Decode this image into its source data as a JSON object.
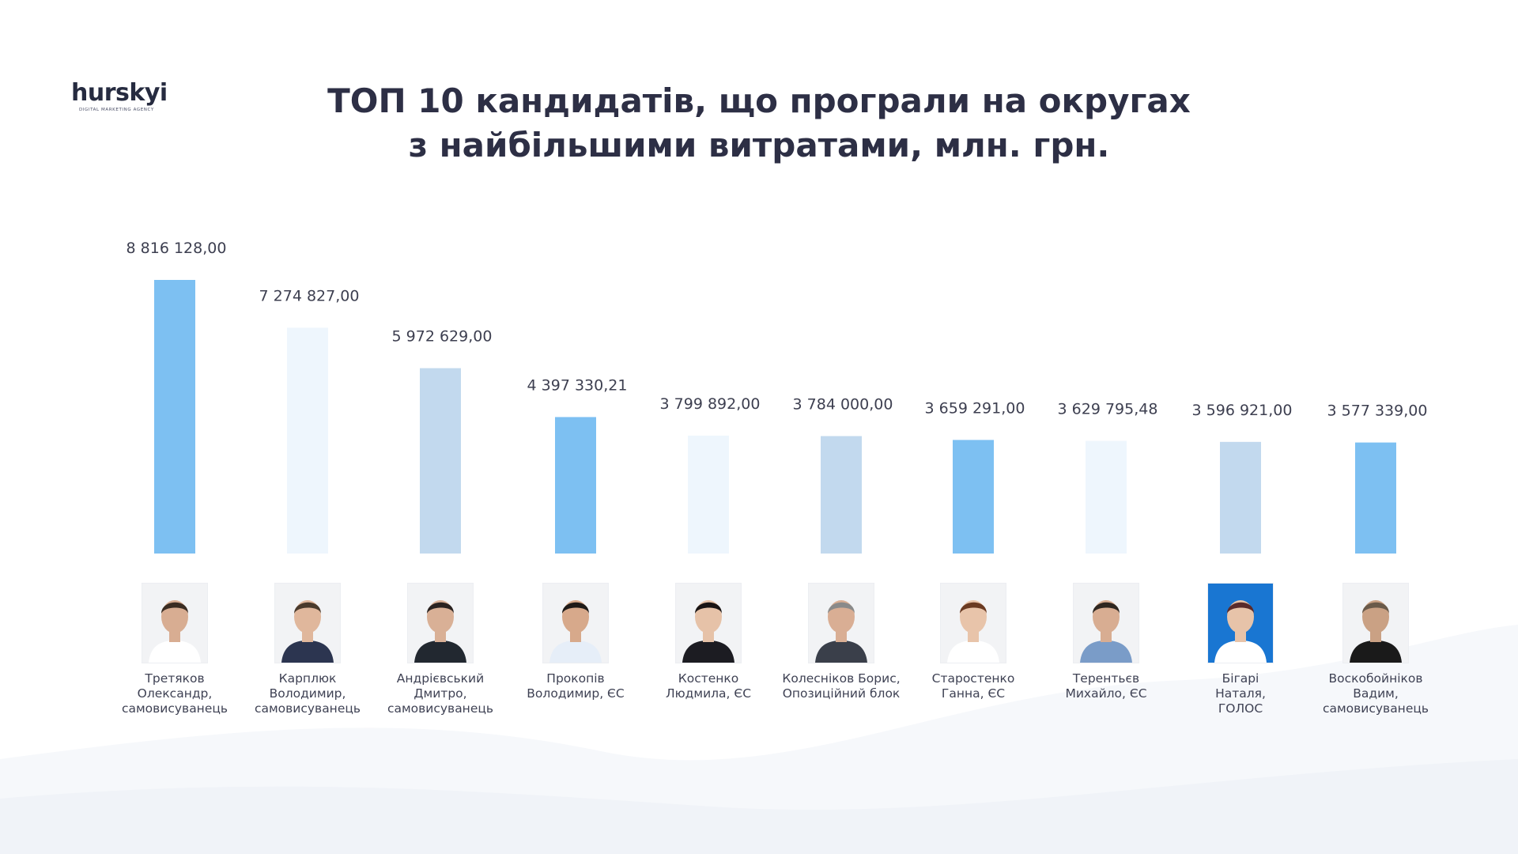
{
  "logo": {
    "word": "hurskyi",
    "sub": "DIGITAL MARKETING AGENCY"
  },
  "title": {
    "line1": "ТОП 10 кандидатів, що програли на округах",
    "line2": "з найбільшими витратами, млн. грн."
  },
  "colors": {
    "bar_a": "#7dc0f2",
    "bar_b": "#eef6fd",
    "bar_c": "#c2d9ee",
    "photo_blue_bg": "#1976d2"
  },
  "chart_data": {
    "type": "bar",
    "categories": [
      "Третяков\nОлександр,\nсамовисуванець",
      "Карплюк\nВолодимир,\nсамовисуванець",
      "Андрієвський\nДмитро,\nсамовисуванець",
      "Прокопів\nВолодимир, ЄС",
      "Костенко\nЛюдмила, ЄС",
      "Колесніков Борис,\nОпозиційний блок",
      "Старостенко\nГанна, ЄС",
      "Терентьєв\nМихайло, ЄС",
      "Бігарі\nНаталя,\nГОЛОС",
      "Воскобойніков\nВадим,\nсамовисуванець"
    ],
    "values": [
      8816128.0,
      7274827.0,
      5972629.0,
      4397330.21,
      3799892.0,
      3784000.0,
      3659291.0,
      3629795.48,
      3596921.0,
      3577339.0
    ],
    "value_labels": [
      "8 816 128,00",
      "7 274 827,00",
      "5 972 629,00",
      "4 397 330,21",
      "3 799 892,00",
      "3 784 000,00",
      "3 659 291,00",
      "3 629 795,48",
      "3 596 921,00",
      "3 577 339,00"
    ],
    "bar_colors": [
      "#7dc0f2",
      "#eef6fd",
      "#c2d9ee",
      "#7dc0f2",
      "#eef6fd",
      "#c2d9ee",
      "#7dc0f2",
      "#eef6fd",
      "#c2d9ee",
      "#7dc0f2"
    ],
    "title": "ТОП 10 кандидатів, що програли на округах з найбільшими витратами, млн. грн.",
    "xlabel": "",
    "ylabel": "",
    "grid": false,
    "legend": "none"
  }
}
